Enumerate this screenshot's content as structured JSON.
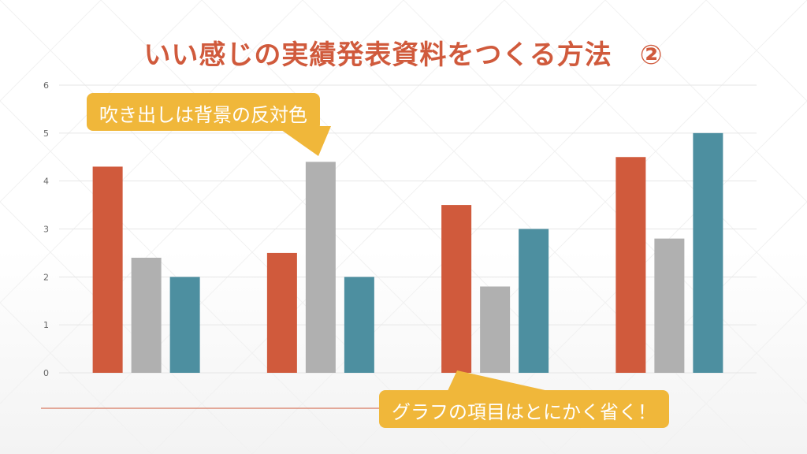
{
  "slide": {
    "title": "いい感じの実績発表資料をつくる方法　②"
  },
  "callouts": [
    {
      "text": "吹き出しは背景の反対色"
    },
    {
      "text": "グラフの項目はとにかく省く！"
    }
  ],
  "colors": {
    "title": "#d05a3c",
    "callout": "#f0b73a",
    "series1": "#d05a3c",
    "series2": "#b0b0b0",
    "series3": "#4d8fa0",
    "gridline": "#e6e6e6",
    "tick": "#666666",
    "baseline_accent": "#d05a3c"
  },
  "chart_data": {
    "type": "bar",
    "categories": [
      "",
      "",
      "",
      ""
    ],
    "series": [
      {
        "values": [
          4.3,
          2.5,
          3.5,
          4.5
        ]
      },
      {
        "values": [
          2.4,
          4.4,
          1.8,
          2.8
        ]
      },
      {
        "values": [
          2.0,
          2.0,
          3.0,
          5.0
        ]
      }
    ],
    "ylim": [
      0,
      6
    ],
    "yticks": [
      "0",
      "1",
      "2",
      "3",
      "4",
      "5",
      "6"
    ],
    "grid": true,
    "legend": "none",
    "title": "",
    "xlabel": "",
    "ylabel": ""
  }
}
